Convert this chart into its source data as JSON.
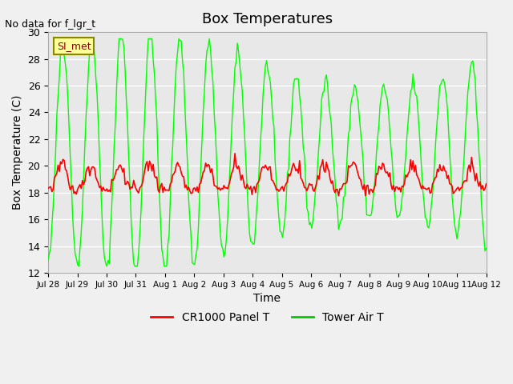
{
  "title": "Box Temperatures",
  "xlabel": "Time",
  "ylabel": "Box Temperature (C)",
  "no_data_label": "No data for f_lgr_t",
  "legend_label": "SI_met",
  "ylim": [
    12,
    30
  ],
  "yticks": [
    12,
    14,
    16,
    18,
    20,
    22,
    24,
    26,
    28,
    30
  ],
  "xtick_labels": [
    "Jul 28",
    "Jul 29",
    "Jul 30",
    "Jul 31",
    "Aug 1",
    "Aug 2",
    "Aug 3",
    "Aug 4",
    "Aug 5",
    "Aug 6",
    "Aug 7",
    "Aug 8",
    "Aug 9",
    "Aug 10",
    "Aug 11",
    "Aug 12"
  ],
  "panel_color": "red",
  "tower_color": "#00ff00",
  "bg_color": "#f0f0f0",
  "plot_bg": "#e8e8e8",
  "legend_series": [
    "CR1000 Panel T",
    "Tower Air T"
  ],
  "legend_colors": [
    "red",
    "#00cc00"
  ]
}
